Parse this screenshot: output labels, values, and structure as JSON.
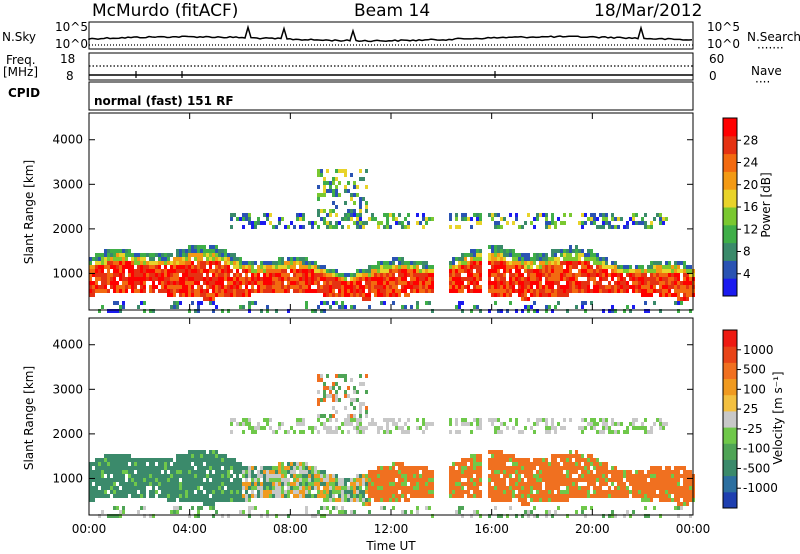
{
  "header": {
    "station": "McMurdo (fitACF)",
    "beam": "Beam 14",
    "date": "18/Mar/2012"
  },
  "top_panels": {
    "nsky_label": "N.Sky",
    "nsearch_label": "N.Search",
    "nsearch_dots": "·······",
    "nsky_ticks": [
      "10^5",
      "10^0"
    ],
    "nsearch_ticks": [
      "10^5",
      "10^0"
    ],
    "freq_label": "Freq.",
    "freq_unit": "[MHz]",
    "freq_ticks": [
      "18",
      "8"
    ],
    "nave_label": "Nave",
    "nave_dots": "····",
    "nave_ticks": [
      "60",
      "0"
    ],
    "cpid_label": "CPID",
    "cpid_text": "normal (fast) 151 RF"
  },
  "chart_data": [
    {
      "type": "heatmap",
      "name": "power",
      "ylabel": "Slant Range [km]",
      "ylim": [
        180,
        4600
      ],
      "yticks": [
        "1000",
        "2000",
        "3000",
        "4000"
      ],
      "x": [
        "00:00",
        "04:00",
        "08:00",
        "12:00",
        "16:00",
        "20:00",
        "00:00"
      ],
      "colorbar": {
        "label": "Power [dB]",
        "ticks": [
          "4",
          "8",
          "12",
          "16",
          "20",
          "24",
          "28"
        ],
        "colors": [
          "#1b1bef",
          "#2a53b3",
          "#3a8a6a",
          "#3fae48",
          "#7ac830",
          "#e8d32a",
          "#f39a14",
          "#f36a10",
          "#e53212",
          "#ff0000"
        ]
      }
    },
    {
      "type": "heatmap",
      "name": "velocity",
      "ylabel": "Slant Range [km]",
      "ylim": [
        180,
        4600
      ],
      "yticks": [
        "1000",
        "2000",
        "3000",
        "4000"
      ],
      "x": [
        "00:00",
        "04:00",
        "08:00",
        "12:00",
        "16:00",
        "20:00",
        "00:00"
      ],
      "xlabel": "Time UT",
      "colorbar": {
        "label": "Velocity [m s⁻¹]",
        "ticks": [
          "1000",
          "500",
          "100",
          "25",
          "-25",
          "-100",
          "-500",
          "-1000"
        ],
        "colors": [
          "#1e3fb0",
          "#2c6fa0",
          "#3b8a6b",
          "#4fa456",
          "#6fc84a",
          "#c8c8c8",
          "#f3c040",
          "#f09a20",
          "#f07020",
          "#e84418",
          "#ee1a12"
        ]
      }
    }
  ]
}
